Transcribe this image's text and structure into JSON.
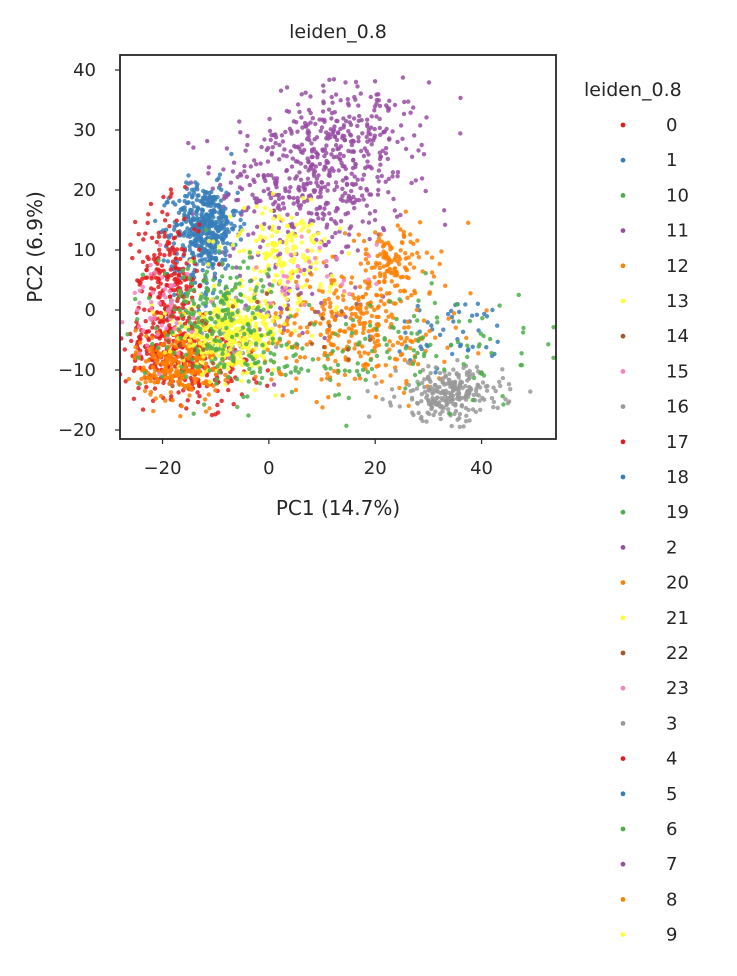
{
  "chart_data": {
    "type": "scatter",
    "title": "leiden_0.8",
    "xlabel": "PC1 (14.7%)",
    "ylabel": "PC2 (6.9%)",
    "xlim": [
      -28,
      54
    ],
    "ylim": [
      -21.5,
      42.5
    ],
    "xticks": [
      -20,
      0,
      20,
      40
    ],
    "xtick_labels": [
      "−20",
      "0",
      "20",
      "40"
    ],
    "yticks": [
      -20,
      -10,
      0,
      10,
      20,
      30,
      40
    ],
    "ytick_labels": [
      "−20",
      "−10",
      "0",
      "10",
      "20",
      "30",
      "40"
    ],
    "grid": false,
    "legend": {
      "title": "leiden_0.8",
      "placement": "outside-right",
      "entries": [
        "0",
        "1",
        "10",
        "11",
        "12",
        "13",
        "14",
        "15",
        "16",
        "17",
        "18",
        "19",
        "2",
        "20",
        "21",
        "22",
        "23",
        "3",
        "4",
        "5",
        "6",
        "7",
        "8",
        "9"
      ],
      "colors": [
        "#e41a1c",
        "#377eb8",
        "#4daf4a",
        "#984ea3",
        "#ff7f00",
        "#ffff33",
        "#a65628",
        "#f781bf",
        "#999999",
        "#e41a1c",
        "#377eb8",
        "#4daf4a",
        "#984ea3",
        "#ff7f00",
        "#ffff33",
        "#a65628",
        "#f781bf",
        "#999999",
        "#e41a1c",
        "#377eb8",
        "#4daf4a",
        "#984ea3",
        "#ff7f00",
        "#ffff33"
      ]
    },
    "clusters": [
      {
        "name": "2",
        "color": "#984ea3",
        "center": [
          8,
          21
        ],
        "spread": [
          9,
          6
        ],
        "n": 420
      },
      {
        "name": "7",
        "color": "#984ea3",
        "center": [
          15,
          30
        ],
        "spread": [
          7,
          4
        ],
        "n": 180
      },
      {
        "name": "11",
        "color": "#984ea3",
        "center": [
          4,
          3
        ],
        "spread": [
          6,
          4
        ],
        "n": 60
      },
      {
        "name": "1",
        "color": "#377eb8",
        "center": [
          -12,
          14
        ],
        "spread": [
          3,
          3.5
        ],
        "n": 420
      },
      {
        "name": "5",
        "color": "#377eb8",
        "center": [
          35,
          -4
        ],
        "spread": [
          6,
          3
        ],
        "n": 50
      },
      {
        "name": "18",
        "color": "#377eb8",
        "center": [
          -13,
          8
        ],
        "spread": [
          3,
          4
        ],
        "n": 60
      },
      {
        "name": "0",
        "color": "#e41a1c",
        "center": [
          -19,
          5
        ],
        "spread": [
          3,
          6
        ],
        "n": 220
      },
      {
        "name": "4",
        "color": "#e41a1c",
        "center": [
          -19,
          -6
        ],
        "spread": [
          4,
          4
        ],
        "n": 200
      },
      {
        "name": "17",
        "color": "#e41a1c",
        "center": [
          -13,
          -10
        ],
        "spread": [
          5,
          3
        ],
        "n": 120
      },
      {
        "name": "8",
        "color": "#ff7f00",
        "center": [
          -17,
          -9
        ],
        "spread": [
          4,
          3
        ],
        "n": 260
      },
      {
        "name": "12",
        "color": "#ff7f00",
        "center": [
          16,
          -3
        ],
        "spread": [
          9,
          5
        ],
        "n": 320
      },
      {
        "name": "20",
        "color": "#ff7f00",
        "center": [
          23,
          8
        ],
        "spread": [
          4,
          3
        ],
        "n": 120
      },
      {
        "name": "16",
        "color": "#999999",
        "center": [
          34,
          -14
        ],
        "spread": [
          5,
          2.2
        ],
        "n": 260
      },
      {
        "name": "3",
        "color": "#999999",
        "center": [
          -6,
          -4
        ],
        "spread": [
          3,
          3
        ],
        "n": 40
      },
      {
        "name": "13",
        "color": "#ffff33",
        "center": [
          -7,
          -4
        ],
        "spread": [
          5,
          3
        ],
        "n": 380
      },
      {
        "name": "9",
        "color": "#ffff33",
        "center": [
          2,
          11
        ],
        "spread": [
          5,
          3
        ],
        "n": 120
      },
      {
        "name": "21",
        "color": "#ffff33",
        "center": [
          5,
          4
        ],
        "spread": [
          4,
          3
        ],
        "n": 50
      },
      {
        "name": "10",
        "color": "#4daf4a",
        "center": [
          -10,
          0
        ],
        "spread": [
          6,
          5
        ],
        "n": 200
      },
      {
        "name": "6",
        "color": "#4daf4a",
        "center": [
          30,
          -6
        ],
        "spread": [
          12,
          5
        ],
        "n": 100
      },
      {
        "name": "19",
        "color": "#4daf4a",
        "center": [
          0,
          -9
        ],
        "spread": [
          10,
          3
        ],
        "n": 80
      },
      {
        "name": "15",
        "color": "#f781bf",
        "center": [
          -20,
          0
        ],
        "spread": [
          3,
          4
        ],
        "n": 50
      },
      {
        "name": "23",
        "color": "#f781bf",
        "center": [
          8,
          6
        ],
        "spread": [
          6,
          3
        ],
        "n": 30
      },
      {
        "name": "14",
        "color": "#a65628",
        "center": [
          -14,
          -5
        ],
        "spread": [
          4,
          4
        ],
        "n": 20
      },
      {
        "name": "22",
        "color": "#a65628",
        "center": [
          10,
          -2
        ],
        "spread": [
          6,
          4
        ],
        "n": 15
      }
    ]
  }
}
